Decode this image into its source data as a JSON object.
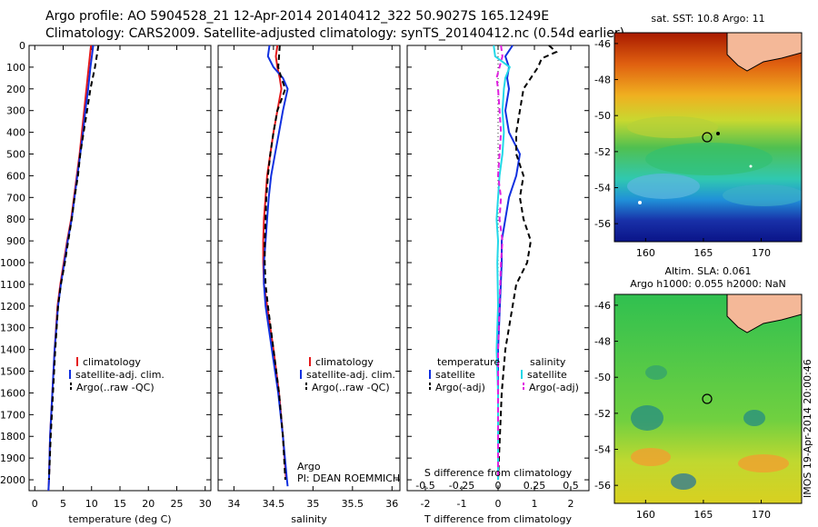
{
  "header": {
    "line1": "Argo profile: AO 5904528_21 12-Apr-2014 20140412_322 50.9027S 165.1249E",
    "line2": "Climatology: CARS2009. Satellite-adjusted climatology: synTS_20140412.nc (0.54d earlier)"
  },
  "colors": {
    "climatology": "#e41a1c",
    "satellite": "#1030e0",
    "argo": "#000000",
    "salinity_satellite": "#22d8e8",
    "salinity_argo": "#e020e0"
  },
  "legend": {
    "climatology": "climatology",
    "satellite_adj": "satellite-adj. clim.",
    "argo_raw": "Argo(..raw -QC)",
    "temperature": "temperature",
    "salinity": "salinity",
    "satellite": "satellite",
    "argo_adj": "Argo(-adj)"
  },
  "annotations": {
    "argo": "Argo",
    "pi": "PI: DEAN ROEMMICH",
    "s_diff_label": "S difference from climatology",
    "credit": "IMOS 19-Apr-2014 20:00:46"
  },
  "maps": {
    "sst_title": "sat. SST: 10.8 Argo: 11",
    "sla_title_line1": "Altim. SLA: 0.061",
    "sla_title_line2": "Argo h1000: 0.055 h2000: NaN",
    "lat_ticks": [
      "-46",
      "-48",
      "-50",
      "-52",
      "-54",
      "-56"
    ],
    "lon_ticks": [
      "160",
      "165",
      "170"
    ],
    "float_position": {
      "lon": 165.1249,
      "lat": -50.9027
    }
  },
  "chart_data": [
    {
      "type": "line",
      "xlabel": "temperature (deg C)",
      "ylabel": "",
      "xlim": [
        -1,
        31
      ],
      "ylim": [
        2050,
        0
      ],
      "x_ticks": [
        "0",
        "5",
        "10",
        "15",
        "20",
        "25",
        "30"
      ],
      "y_ticks": [
        "0",
        "100",
        "200",
        "300",
        "400",
        "500",
        "600",
        "700",
        "800",
        "900",
        "1000",
        "1100",
        "1200",
        "1300",
        "1400",
        "1500",
        "1600",
        "1700",
        "1800",
        "1900",
        "2000"
      ],
      "series": [
        {
          "name": "climatology",
          "depth": [
            0,
            100,
            200,
            300,
            400,
            500,
            600,
            700,
            800,
            900,
            1000,
            1100,
            1200,
            1400,
            1600,
            1800,
            2000,
            2050
          ],
          "values": [
            9.9,
            9.5,
            9.1,
            8.7,
            8.3,
            7.9,
            7.4,
            6.9,
            6.4,
            5.7,
            5.1,
            4.5,
            4.0,
            3.5,
            3.1,
            2.7,
            2.5,
            2.4
          ]
        },
        {
          "name": "satellite-adj. clim.",
          "depth": [
            0,
            100,
            200,
            300,
            400,
            500,
            600,
            700,
            800,
            900,
            1000,
            1100,
            1200,
            1400,
            1600,
            1800,
            2000,
            2050
          ],
          "values": [
            10.3,
            9.8,
            9.4,
            8.9,
            8.5,
            8.0,
            7.5,
            7.0,
            6.5,
            5.8,
            5.2,
            4.6,
            4.1,
            3.5,
            3.1,
            2.7,
            2.5,
            2.4
          ]
        },
        {
          "name": "Argo(..raw -QC)",
          "depth": [
            0,
            50,
            100,
            150,
            200,
            300,
            400,
            500,
            600,
            700,
            800,
            900,
            1000,
            1100,
            1200,
            1400,
            1600,
            1800,
            2000
          ],
          "values": [
            11.2,
            10.9,
            10.6,
            10.2,
            9.8,
            9.2,
            8.6,
            8.0,
            7.6,
            7.0,
            6.5,
            5.9,
            5.3,
            4.6,
            4.1,
            3.6,
            3.2,
            2.8,
            2.5
          ]
        }
      ]
    },
    {
      "type": "line",
      "xlabel": "salinity",
      "ylabel": "",
      "xlim": [
        33.8,
        36.1
      ],
      "ylim": [
        2050,
        0
      ],
      "x_ticks": [
        "34",
        "34.5",
        "35",
        "35.5",
        "36"
      ],
      "series": [
        {
          "name": "climatology",
          "depth": [
            0,
            50,
            100,
            150,
            200,
            300,
            400,
            500,
            600,
            700,
            800,
            900,
            1000,
            1100,
            1200,
            1400,
            1600,
            1800,
            2000
          ],
          "values": [
            34.55,
            34.53,
            34.55,
            34.58,
            34.6,
            34.55,
            34.5,
            34.46,
            34.42,
            34.4,
            34.38,
            34.37,
            34.37,
            34.38,
            34.42,
            34.5,
            34.57,
            34.62,
            34.66
          ]
        },
        {
          "name": "satellite-adj. clim.",
          "depth": [
            0,
            50,
            100,
            150,
            200,
            300,
            400,
            500,
            600,
            700,
            800,
            900,
            1000,
            1100,
            1200,
            1400,
            1600,
            1800,
            2000,
            2030
          ],
          "values": [
            34.45,
            34.43,
            34.5,
            34.62,
            34.68,
            34.62,
            34.57,
            34.52,
            34.47,
            34.44,
            34.42,
            34.4,
            34.38,
            34.38,
            34.4,
            34.48,
            34.56,
            34.62,
            34.67,
            34.68
          ]
        },
        {
          "name": "Argo(..raw -QC)",
          "depth": [
            0,
            50,
            100,
            150,
            200,
            250,
            300,
            400,
            500,
            600,
            700,
            800,
            900,
            1000,
            1100,
            1200,
            1400,
            1600,
            1800,
            2000
          ],
          "values": [
            34.58,
            34.57,
            34.56,
            34.6,
            34.65,
            34.6,
            34.55,
            34.5,
            34.46,
            34.43,
            34.41,
            34.4,
            34.39,
            34.39,
            34.4,
            34.43,
            34.5,
            34.57,
            34.62,
            34.65
          ]
        }
      ]
    },
    {
      "type": "line",
      "xlabel": "T difference from climatology",
      "ylabel": "",
      "xlim": [
        -2.5,
        2.5
      ],
      "ylim": [
        2050,
        0
      ],
      "x_ticks": [
        "-2",
        "-1",
        "0",
        "1",
        "2"
      ],
      "top_axis_label": "S difference from climatology",
      "top_ticks": [
        "-0.5",
        "-0.25",
        "0",
        "0.25",
        "0.5"
      ],
      "top_xlim": [
        -0.625,
        0.625
      ],
      "series": [
        {
          "name": "temperature satellite",
          "depth": [
            0,
            50,
            100,
            150,
            200,
            300,
            400,
            500,
            600,
            700,
            800,
            900,
            1000,
            1200,
            1400,
            1600,
            1800,
            2000
          ],
          "values": [
            0.4,
            0.2,
            0.3,
            0.25,
            0.3,
            0.2,
            0.3,
            0.6,
            0.5,
            0.3,
            0.2,
            0.1,
            0.1,
            0.05,
            0.0,
            0.0,
            0.0,
            0.0
          ]
        },
        {
          "name": "temperature Argo(-adj)",
          "depth": [
            0,
            30,
            60,
            100,
            150,
            200,
            300,
            400,
            500,
            600,
            700,
            800,
            900,
            1000,
            1100,
            1200,
            1300,
            1400,
            1600,
            1800,
            2000
          ],
          "values": [
            1.4,
            1.6,
            1.2,
            1.1,
            0.9,
            0.7,
            0.6,
            0.5,
            0.5,
            0.7,
            0.6,
            0.7,
            0.9,
            0.8,
            0.5,
            0.4,
            0.3,
            0.2,
            0.1,
            0.05,
            0.0
          ]
        },
        {
          "name": "salinity satellite",
          "depth": [
            0,
            50,
            100,
            150,
            200,
            300,
            400,
            500,
            600,
            700,
            800,
            900,
            1000,
            1200,
            1400,
            1600,
            1800,
            2000
          ],
          "values": [
            -0.03,
            -0.02,
            0.08,
            0.05,
            0.04,
            0.03,
            0.04,
            0.03,
            0.01,
            0.0,
            -0.01,
            0.0,
            -0.005,
            0.0,
            -0.01,
            0.0,
            0.0,
            0.0
          ]
        },
        {
          "name": "salinity Argo(-adj)",
          "depth": [
            0,
            50,
            100,
            150,
            200,
            300,
            400,
            500,
            600,
            700,
            800,
            900,
            1000,
            1200,
            1400,
            1600,
            1800,
            2000
          ],
          "values": [
            0.02,
            0.03,
            0.01,
            -0.01,
            0.0,
            0.01,
            0.02,
            0.01,
            0.0,
            0.02,
            0.01,
            0.03,
            0.02,
            0.01,
            0.0,
            0.0,
            0.0,
            0.0
          ]
        }
      ]
    }
  ]
}
